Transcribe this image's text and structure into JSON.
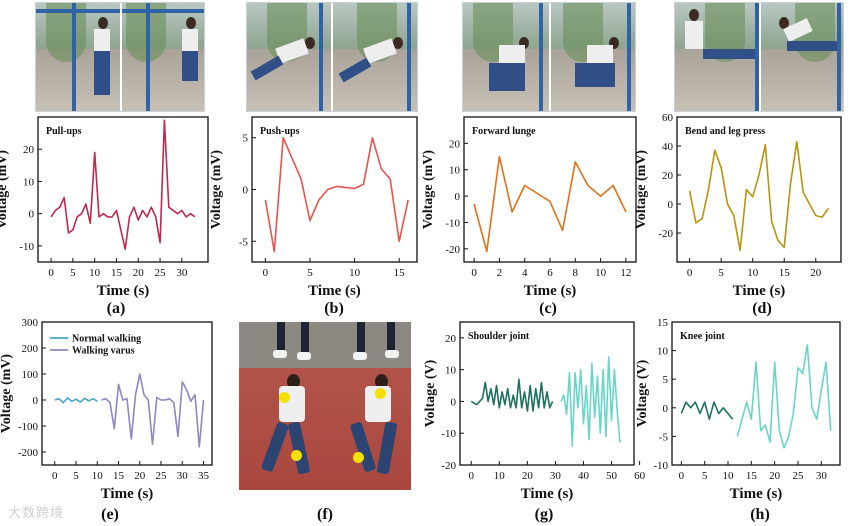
{
  "panel_labels": [
    "(a)",
    "(b)",
    "(c)",
    "(d)",
    "(e)",
    "(f)",
    "(g)",
    "(h)"
  ],
  "watermark": "大数跨境",
  "chart_data": [
    {
      "id": "a",
      "type": "line",
      "title": "Pull-ups",
      "color": "#c0284e",
      "xlabel": "Time (s)",
      "ylabel": "Voltage (mV)",
      "xlim": [
        -3,
        36
      ],
      "ylim": [
        -15,
        30
      ],
      "xticks": [
        0,
        5,
        10,
        15,
        20,
        25,
        30
      ],
      "yticks": [
        -10,
        0,
        10,
        20
      ],
      "x": [
        0,
        1,
        2,
        3,
        4,
        5,
        6,
        7,
        8,
        9,
        10,
        11,
        12,
        13,
        14,
        15,
        16,
        17,
        18,
        19,
        20,
        21,
        22,
        23,
        24,
        25,
        26,
        27,
        28,
        29,
        30,
        31,
        32,
        33
      ],
      "y": [
        -1,
        1,
        2,
        5,
        -6,
        -5,
        -1,
        0,
        3,
        -3,
        19,
        -1,
        0,
        -1,
        -1,
        1,
        -5,
        -11,
        -1,
        2,
        -2,
        1,
        -1,
        2,
        -1,
        -9,
        29,
        2,
        1,
        0,
        1,
        -1,
        0,
        -1
      ]
    },
    {
      "id": "b",
      "type": "line",
      "title": "Push-ups",
      "color": "#e8524f",
      "xlabel": "Time (s)",
      "ylabel": "Voltage (mV)",
      "xlim": [
        -1.5,
        17
      ],
      "ylim": [
        -7,
        7
      ],
      "xticks": [
        0,
        5,
        10,
        15
      ],
      "yticks": [
        -5,
        0,
        5
      ],
      "x": [
        0,
        1,
        2,
        3,
        4,
        5,
        6,
        7,
        8,
        9,
        10,
        11,
        12,
        13,
        14,
        15,
        16
      ],
      "y": [
        -1,
        -6,
        5,
        3,
        1,
        -3,
        -1,
        0,
        0.3,
        0.2,
        0.1,
        0.5,
        5,
        2,
        1,
        -5,
        -1
      ]
    },
    {
      "id": "c",
      "type": "line",
      "title": "Forward lunge",
      "color": "#e0711a",
      "xlabel": "Time (s)",
      "ylabel": "Voltage (mV)",
      "xlim": [
        -0.8,
        12.8
      ],
      "ylim": [
        -25,
        30
      ],
      "xticks": [
        0,
        2,
        4,
        6,
        8,
        10,
        12
      ],
      "yticks": [
        -20,
        -10,
        0,
        10,
        20
      ],
      "x": [
        0,
        1,
        2,
        3,
        4,
        5,
        6,
        7,
        8,
        9,
        10,
        11,
        12
      ],
      "y": [
        -3,
        -21,
        15,
        -6,
        4,
        1,
        -2,
        -13,
        13,
        4,
        0,
        4,
        -6
      ]
    },
    {
      "id": "d",
      "type": "line",
      "title": "Bend and leg press",
      "color": "#b8930f",
      "xlabel": "Time (s)",
      "ylabel": "Voltage (mV)",
      "xlim": [
        -2,
        24
      ],
      "ylim": [
        -40,
        60
      ],
      "xticks": [
        0,
        5,
        10,
        15,
        20
      ],
      "yticks": [
        -20,
        0,
        20,
        40,
        60
      ],
      "x": [
        0,
        1,
        2,
        3,
        4,
        5,
        6,
        7,
        8,
        9,
        10,
        11,
        12,
        13,
        14,
        15,
        16,
        17,
        18,
        19,
        20,
        21,
        22
      ],
      "y": [
        9,
        -13,
        -10,
        10,
        37,
        25,
        0,
        -8,
        -32,
        10,
        5,
        20,
        41,
        -12,
        -25,
        -30,
        14,
        43,
        8,
        0,
        -8,
        -9,
        -3
      ]
    },
    {
      "id": "e",
      "type": "line",
      "title": "",
      "xlabel": "Time (s)",
      "ylabel": "Voltage (mV)",
      "xlim": [
        -3,
        37
      ],
      "ylim": [
        -250,
        300
      ],
      "xticks": [
        0,
        5,
        10,
        15,
        20,
        25,
        30,
        35
      ],
      "yticks": [
        -200,
        -100,
        0,
        100,
        200,
        300
      ],
      "legend": [
        "Normal walking",
        "Walking varus"
      ],
      "series": [
        {
          "name": "Normal walking",
          "color": "#4aa6c7",
          "x": [
            0,
            1,
            2,
            3,
            4,
            5,
            6,
            7,
            8,
            9,
            10
          ],
          "y": [
            0,
            5,
            -10,
            8,
            -5,
            3,
            -8,
            6,
            -3,
            5,
            -5
          ]
        },
        {
          "name": "Walking varus",
          "color": "#8f86c2",
          "x": [
            11,
            12,
            13,
            14,
            15,
            16,
            17,
            18,
            19,
            20,
            21,
            22,
            23,
            24,
            25,
            26,
            27,
            28,
            29,
            30,
            31,
            32,
            33,
            34,
            35
          ],
          "y": [
            0,
            5,
            -10,
            -110,
            60,
            0,
            5,
            -150,
            20,
            100,
            20,
            0,
            -170,
            10,
            0,
            0,
            5,
            -10,
            -140,
            70,
            40,
            -5,
            20,
            -180,
            0
          ]
        }
      ]
    },
    {
      "id": "g",
      "type": "line",
      "title": "Shoulder joint",
      "xlabel": "Time (s)",
      "ylabel": "Voltage (V)",
      "xlim": [
        -4,
        58
      ],
      "ylim": [
        -20,
        25
      ],
      "xticks": [
        0,
        10,
        20,
        30,
        40,
        50,
        60
      ],
      "yticks": [
        -20,
        -10,
        0,
        10,
        20
      ],
      "series": [
        {
          "name": "",
          "color": "#1e7060",
          "x": [
            0,
            2,
            4,
            5,
            6,
            7,
            8,
            9,
            10,
            11,
            12,
            13,
            14,
            15,
            16,
            17,
            18,
            19,
            20,
            21,
            22,
            23,
            24,
            25,
            26,
            27,
            28,
            29
          ],
          "y": [
            0,
            -1,
            1,
            6,
            0,
            4,
            -1,
            5,
            -2,
            3,
            -1,
            4,
            -2,
            2,
            -2,
            7,
            -2,
            3,
            -3,
            5,
            -3,
            4,
            -2,
            6,
            -2,
            3,
            -2,
            0
          ]
        },
        {
          "name": "",
          "color": "#69d4c8",
          "x": [
            32,
            33,
            34,
            35,
            36,
            37,
            38,
            39,
            40,
            41,
            42,
            43,
            44,
            45,
            46,
            47,
            48,
            49,
            50,
            51,
            52,
            53
          ],
          "y": [
            0,
            2,
            -4,
            9,
            -14,
            9,
            -2,
            10,
            -7,
            5,
            -12,
            12,
            -5,
            8,
            -10,
            10,
            -11,
            14,
            -6,
            10,
            -3,
            -13
          ]
        }
      ]
    },
    {
      "id": "h",
      "type": "line",
      "title": "Knee joint",
      "xlabel": "Time (s)",
      "ylabel": "Voltage (V)",
      "xlim": [
        -2,
        34
      ],
      "ylim": [
        -10,
        15
      ],
      "xticks": [
        0,
        5,
        10,
        15,
        20,
        25,
        30
      ],
      "yticks": [
        -10,
        -5,
        0,
        5,
        10,
        15
      ],
      "series": [
        {
          "name": "",
          "color": "#1e7060",
          "x": [
            0,
            1,
            2,
            3,
            4,
            5,
            6,
            7,
            8,
            9,
            10,
            11
          ],
          "y": [
            -1,
            1,
            0,
            1,
            -1,
            1,
            -2,
            1,
            -1,
            0,
            -1,
            -2
          ]
        },
        {
          "name": "",
          "color": "#69d4c8",
          "x": [
            12,
            13,
            14,
            15,
            16,
            17,
            18,
            19,
            20,
            21,
            22,
            23,
            24,
            25,
            26,
            27,
            28,
            29,
            30,
            31,
            32
          ],
          "y": [
            -5,
            -2,
            1,
            -2,
            8,
            -4,
            -3,
            -6,
            8,
            -4,
            -7,
            -5,
            -1,
            7,
            6,
            11,
            0,
            -2,
            3,
            8,
            -4
          ]
        }
      ]
    }
  ]
}
